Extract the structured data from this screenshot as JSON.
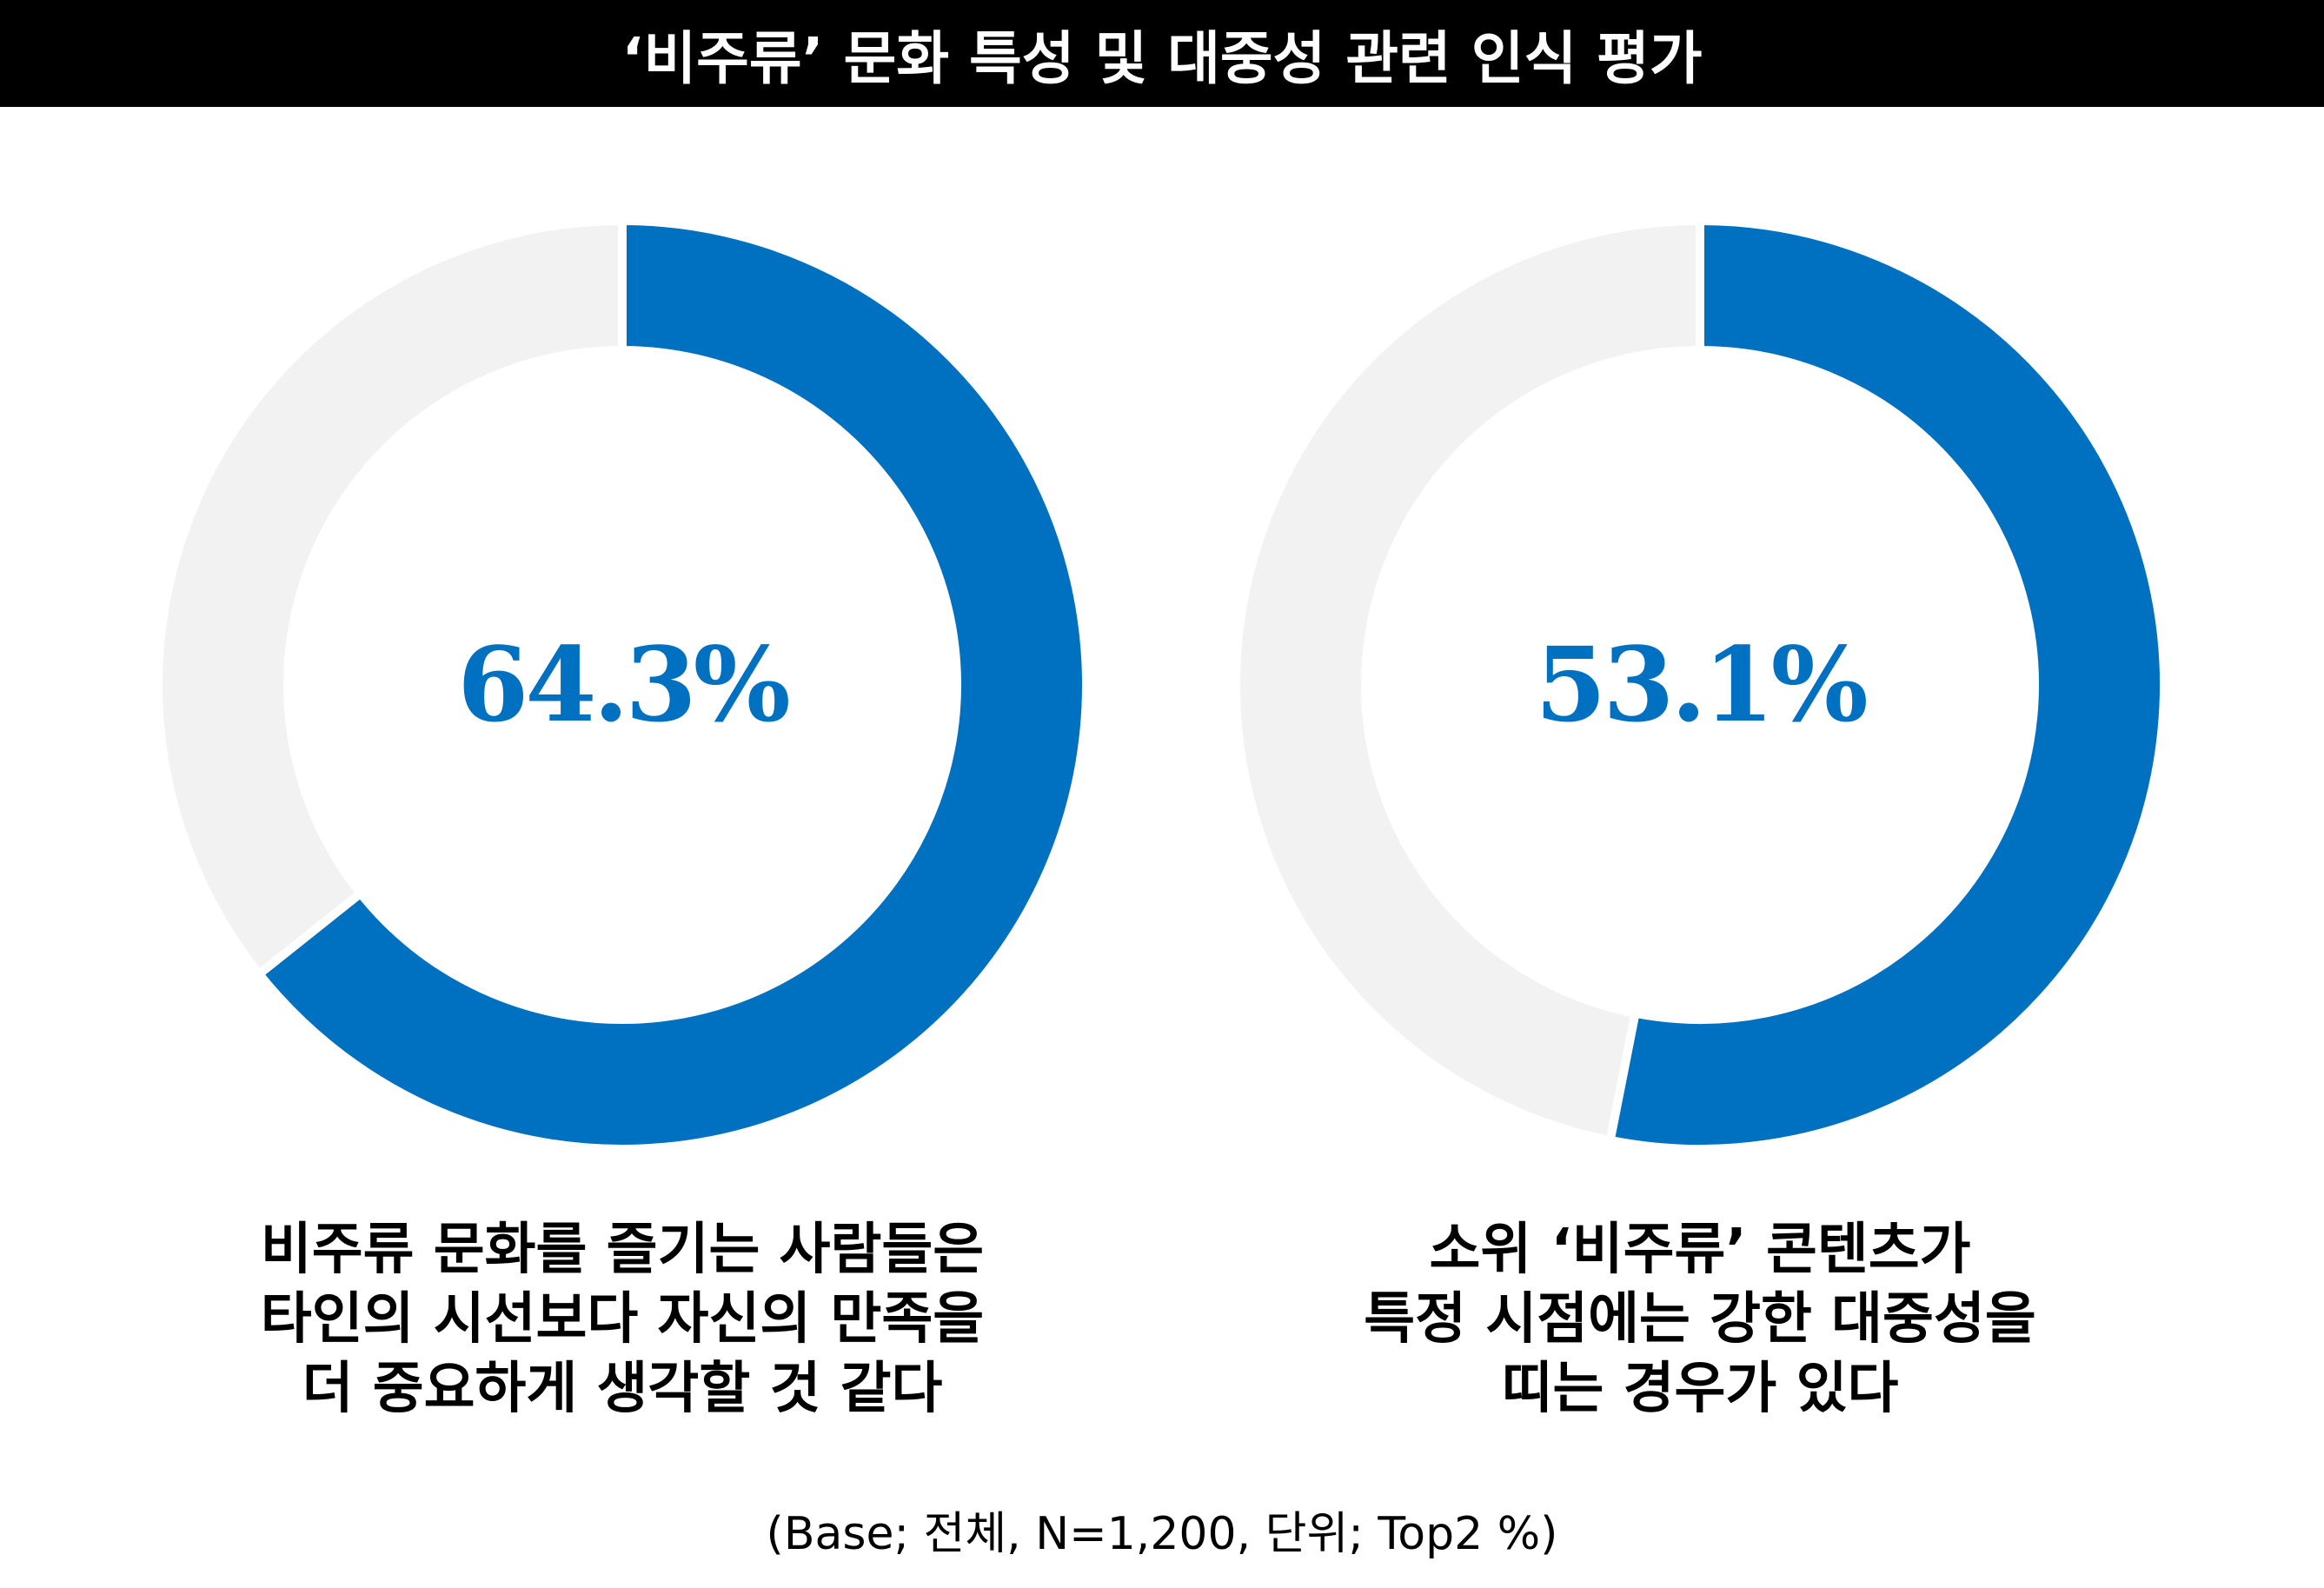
{
  "title": "‘비주류’ 문화 특성 및 대중성 관련 인식 평가",
  "colors": {
    "highlight": "#0070C0",
    "remainder": "#F2F2F2"
  },
  "chart_data": [
    {
      "type": "pie",
      "subtype": "donut",
      "value": 64.3,
      "remainder": 35.7,
      "label": "64.3%",
      "caption": [
        "비주류 문화를 즐기는 사람들은",
        "타인의 시선보다 자신의 만족을",
        "더 중요하게 생각할 것 같다"
      ]
    },
    {
      "type": "pie",
      "subtype": "donut",
      "value": 53.1,
      "remainder": 46.9,
      "label": "53.1%",
      "caption": [
        "소위 ‘비주류’ 콘텐츠가",
        "특정 시점에는 강한 대중성을",
        "띠는 경우가 있다"
      ]
    }
  ],
  "footnote": "(Base; 전체, N=1,200, 단위; Top2 %)"
}
